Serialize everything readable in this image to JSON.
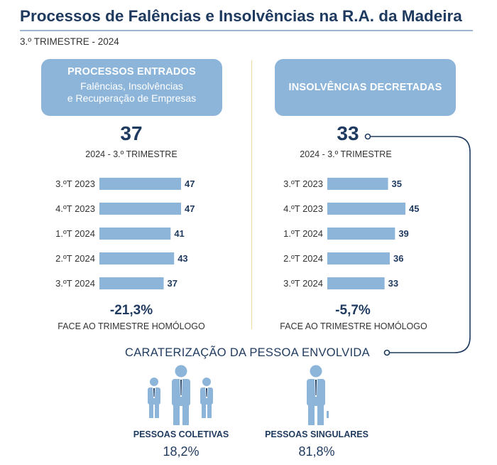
{
  "header": {
    "title": "Processos de Falências e Insolvências na R.A. da Madeira",
    "subtitle": "3.º TRIMESTRE - 2024"
  },
  "panels": {
    "left": {
      "heading": "PROCESSOS ENTRADOS",
      "sub_line1": "Falências, Insolvências",
      "sub_line2": "e Recuperação de Empresas",
      "big_value": "37",
      "period": "2024 - 3.º TRIMESTRE",
      "change": "-21,3%",
      "change_caption": "FACE AO TRIMESTRE HOMÓLOGO"
    },
    "right": {
      "heading": "INSOLVÊNCIAS DECRETADAS",
      "big_value": "33",
      "period": "2024 - 3.º TRIMESTRE",
      "change": "-5,7%",
      "change_caption": "FACE AO TRIMESTRE HOMÓLOGO"
    }
  },
  "chart_data": [
    {
      "type": "bar",
      "orientation": "horizontal",
      "categories": [
        "3.ºT 2023",
        "4.ºT 2023",
        "1.ºT 2024",
        "2.ºT 2024",
        "3.ºT 2024"
      ],
      "values": [
        47,
        47,
        41,
        43,
        37
      ],
      "title": "",
      "xlabel": "",
      "ylabel": "",
      "xlim": [
        0,
        47
      ],
      "grid": false,
      "color": "#8db5da"
    },
    {
      "type": "bar",
      "orientation": "horizontal",
      "categories": [
        "3.ºT 2023",
        "4.ºT 2023",
        "1.ºT 2024",
        "2.ºT 2024",
        "3.ºT 2024"
      ],
      "values": [
        35,
        45,
        39,
        36,
        33
      ],
      "title": "",
      "xlabel": "",
      "ylabel": "",
      "xlim": [
        0,
        45
      ],
      "grid": false,
      "color": "#8db5da"
    }
  ],
  "characterization": {
    "title": "CARATERIZAÇÃO DA PESSOA ENVOLVIDA",
    "coletivas_label": "PESSOAS COLETIVAS",
    "coletivas_pct": "18,2%",
    "singulares_label": "PESSOAS SINGULARES",
    "singulares_pct": "81,8%"
  },
  "colors": {
    "navy": "#1f3a5f",
    "bar_blue": "#8db5da",
    "divider": "#f2d9a0"
  },
  "icons": {
    "coletivas": "group-of-people-icon",
    "singulares": "single-person-icon"
  }
}
